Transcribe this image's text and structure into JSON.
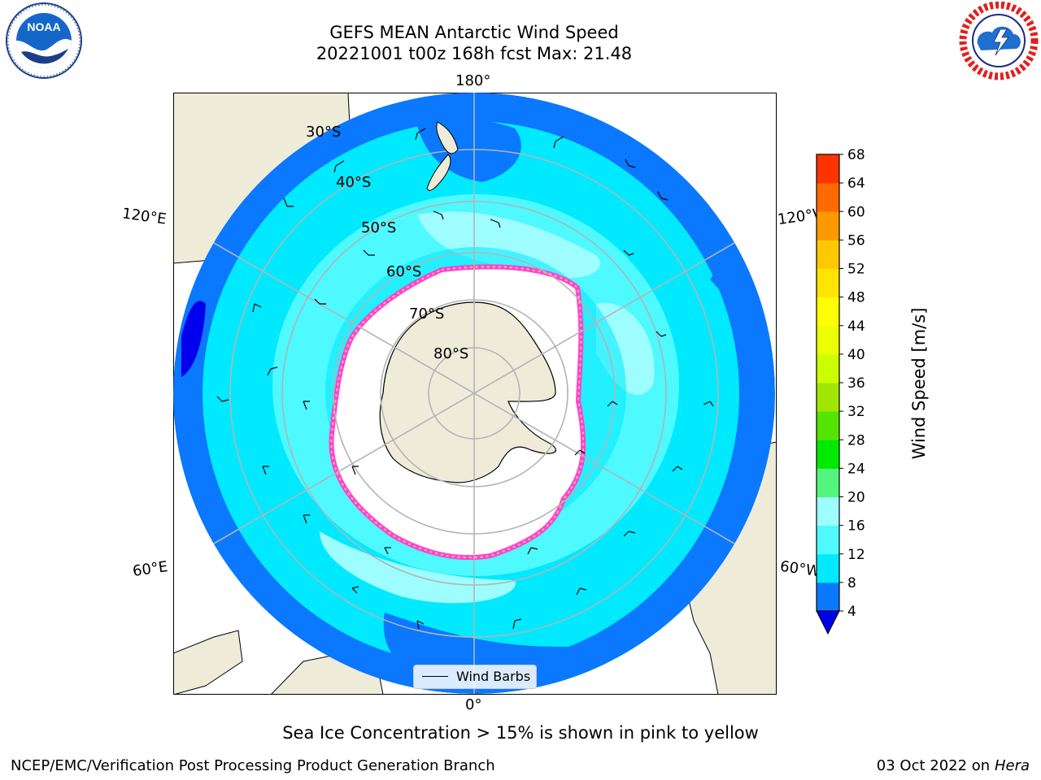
{
  "header": {
    "title_line1": "GEFS MEAN Antarctic Wind Speed",
    "title_line2": "20221001 t00z 168h fcst   Max: 21.48"
  },
  "logos": {
    "left": {
      "name": "noaa-logo",
      "text": "NOAA",
      "ring_text": "NATIONAL OCEANIC AND ATMOSPHERIC ADMINISTRATION · U.S. DEPARTMENT OF COMMERCE"
    },
    "right": {
      "name": "nws-logo",
      "ring_text": "NATIONAL WEATHER SERVICE"
    }
  },
  "map": {
    "projection": "south-polar-stereographic",
    "lon_labels": {
      "top": "180°",
      "bottom": "0°",
      "upper_left": "120°E",
      "upper_right": "120°W",
      "lower_left": "60°E",
      "lower_right": "60°W"
    },
    "lat_labels": [
      "30°S",
      "40°S",
      "50°S",
      "60°S",
      "70°S",
      "80°S"
    ],
    "colors": {
      "land": "#eeecd9",
      "coast": "#000000",
      "grid": "#b4b4b4",
      "sea_ice_low": "#ff3fe0",
      "sea_ice_high": "#ffd040"
    }
  },
  "legend": {
    "wind_barbs_label": "Wind Barbs"
  },
  "colorbar": {
    "label": "Wind Speed [m/s]",
    "ticks": [
      "4",
      "8",
      "12",
      "16",
      "20",
      "24",
      "28",
      "32",
      "36",
      "40",
      "44",
      "48",
      "52",
      "56",
      "60",
      "64",
      "68"
    ],
    "colors": [
      "#0a78ff",
      "#00e9ff",
      "#4ef9ff",
      "#9efdff",
      "#53f57c",
      "#00ea00",
      "#55e400",
      "#a1e600",
      "#cbff00",
      "#ebff00",
      "#ffff00",
      "#ffe400",
      "#ffc800",
      "#ff9900",
      "#ff6a00",
      "#ff3300",
      "#ff0000"
    ],
    "under_color": "#0000ee"
  },
  "note": "Sea Ice Concentration > 15% is shown in pink to yellow",
  "footer": {
    "left": "NCEP/EMC/Verification Post Processing Product Generation Branch",
    "right_date": "03 Oct 2022 on",
    "right_host": "Hera"
  }
}
